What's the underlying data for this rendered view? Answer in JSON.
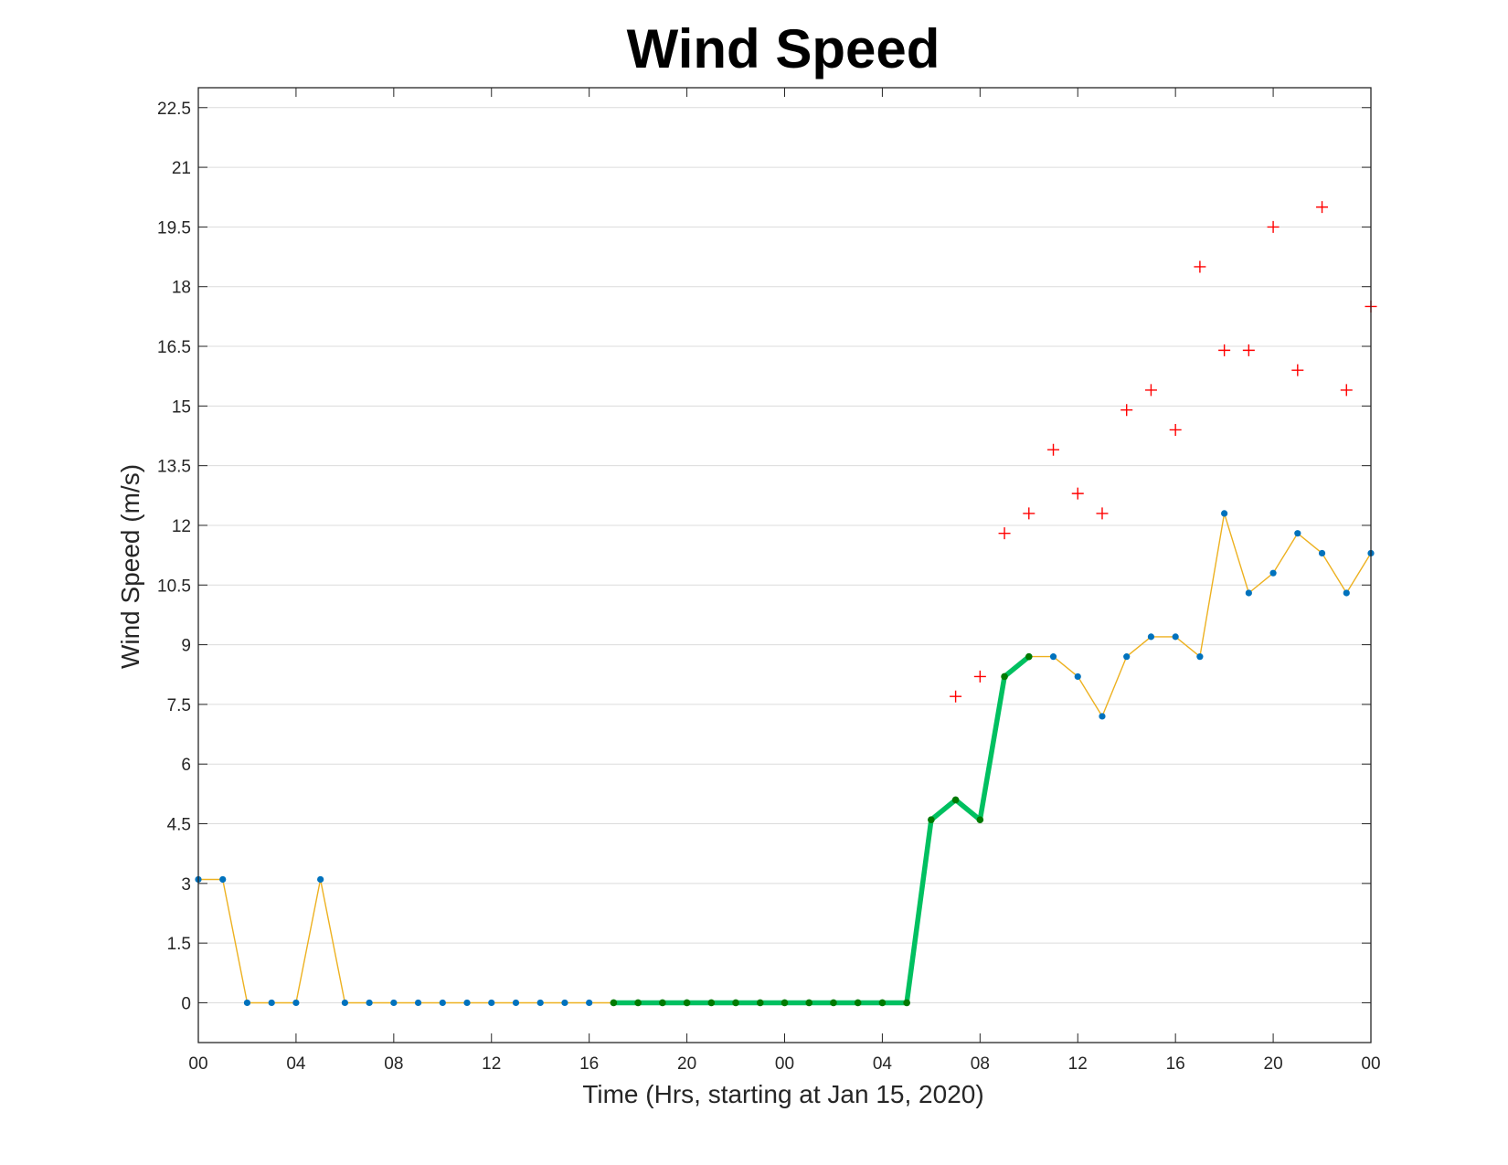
{
  "chart_data": {
    "type": "line",
    "title": "Wind Speed",
    "xlabel": "Time (Hrs, starting at Jan 15, 2020)",
    "ylabel": "Wind Speed (m/s)",
    "x_unit": "hours",
    "xlim": [
      0,
      48
    ],
    "ylim": [
      -1,
      23
    ],
    "x_tick_values": [
      0,
      4,
      8,
      12,
      16,
      20,
      24,
      28,
      32,
      36,
      40,
      44,
      48
    ],
    "x_tick_labels": [
      "00",
      "04",
      "08",
      "12",
      "16",
      "20",
      "00",
      "04",
      "08",
      "12",
      "16",
      "20",
      "00"
    ],
    "y_ticks": [
      0,
      1.5,
      3,
      4.5,
      6,
      7.5,
      9,
      10.5,
      12,
      13.5,
      15,
      16.5,
      18,
      19.5,
      21,
      22.5
    ],
    "y_tick_labels": [
      "0",
      "1.5",
      "3",
      "4.5",
      "6",
      "7.5",
      "9",
      "10.5",
      "12",
      "13.5",
      "15",
      "16.5",
      "18",
      "19.5",
      "21",
      "22.5"
    ],
    "grid": "horizontal",
    "series": [
      {
        "style": "thin-orange-line-with-blue-dots",
        "color": "#EDB120",
        "marker_color": "#0072BD",
        "x": [
          0,
          1,
          2,
          3,
          4,
          5,
          6,
          7,
          8,
          9,
          10,
          11,
          12,
          13,
          14,
          15,
          16,
          17,
          18,
          19,
          20,
          21,
          22,
          23,
          24,
          25,
          26,
          27,
          28,
          29,
          30,
          31,
          32,
          33,
          34,
          35,
          36,
          37,
          38,
          39,
          40,
          41,
          42,
          43,
          44,
          45,
          46,
          47,
          48
        ],
        "y": [
          3.1,
          3.1,
          0,
          0,
          0,
          3.1,
          0,
          0,
          0,
          0,
          0,
          0,
          0,
          0,
          0,
          0,
          0,
          0,
          0,
          0,
          0,
          0,
          0,
          0,
          0,
          0,
          0,
          0,
          0,
          0,
          4.6,
          5.1,
          4.6,
          8.2,
          8.7,
          8.7,
          8.2,
          7.2,
          8.7,
          9.2,
          9.2,
          8.7,
          12.3,
          10.3,
          10.8,
          11.8,
          11.3,
          10.3,
          11.3
        ]
      },
      {
        "style": "thick-green-line-with-dark-green-dots",
        "color": "#00C060",
        "marker_color": "#007A00",
        "x": [
          17,
          18,
          19,
          20,
          21,
          22,
          23,
          24,
          25,
          26,
          27,
          28,
          29,
          30,
          31,
          32,
          33,
          34
        ],
        "y": [
          0,
          0,
          0,
          0,
          0,
          0,
          0,
          0,
          0,
          0,
          0,
          0,
          0,
          4.6,
          5.1,
          4.6,
          8.2,
          8.7
        ]
      },
      {
        "style": "red-plus-markers",
        "color": "#FF0000",
        "x": [
          31,
          32,
          33,
          34,
          35,
          36,
          37,
          38,
          39,
          40,
          41,
          42,
          43,
          44,
          45,
          46,
          47,
          48
        ],
        "y": [
          7.7,
          8.2,
          11.8,
          12.3,
          13.9,
          12.8,
          12.3,
          14.9,
          15.4,
          14.4,
          18.5,
          16.4,
          16.4,
          19.5,
          15.9,
          20.0,
          15.4,
          17.5
        ]
      }
    ]
  }
}
